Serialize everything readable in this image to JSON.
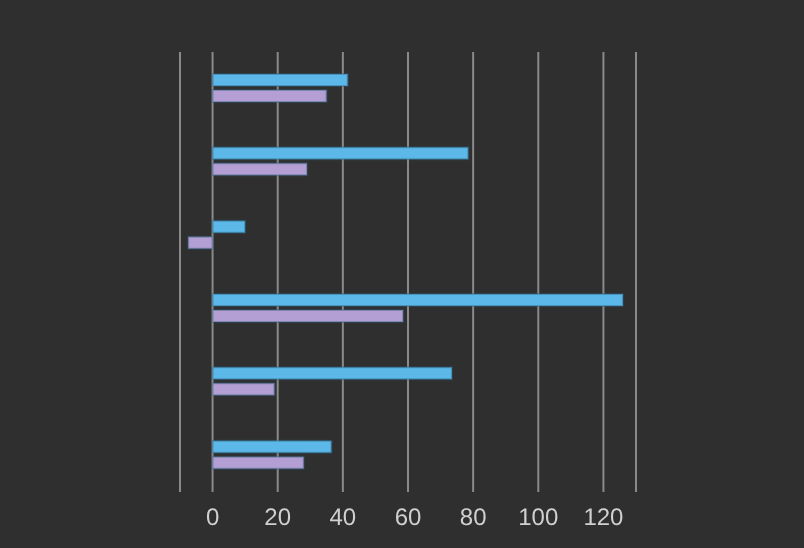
{
  "chart_data": {
    "type": "bar",
    "orientation": "horizontal",
    "categories": [
      null,
      null,
      null,
      null,
      null,
      null
    ],
    "series": [
      {
        "color": "#5bb8e8",
        "values": [
          41.5,
          78.5,
          10,
          126,
          73.5,
          36.5
        ]
      },
      {
        "color": "#b49fd4",
        "values": [
          35,
          29,
          -7.5,
          58.5,
          19,
          28
        ]
      }
    ],
    "xlim": [
      -10,
      130
    ],
    "xticks": [
      0,
      20,
      40,
      60,
      80,
      100,
      120
    ],
    "grid": "x",
    "tick_labels": "x"
  }
}
